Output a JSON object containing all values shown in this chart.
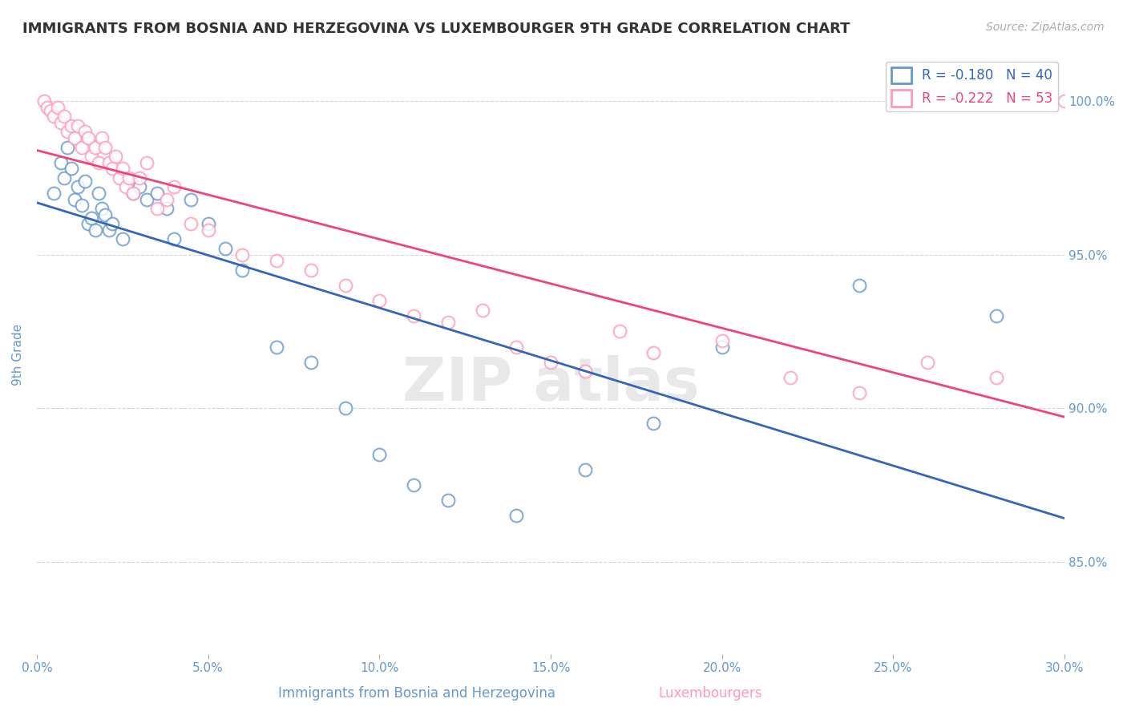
{
  "title": "IMMIGRANTS FROM BOSNIA AND HERZEGOVINA VS LUXEMBOURGER 9TH GRADE CORRELATION CHART",
  "source": "Source: ZipAtlas.com",
  "xlabel_left": "Immigrants from Bosnia and Herzegovina",
  "xlabel_right": "Luxembourgers",
  "ylabel": "9th Grade",
  "xlim": [
    0.0,
    0.3
  ],
  "ylim": [
    0.82,
    1.015
  ],
  "yticks": [
    0.85,
    0.9,
    0.95,
    1.0
  ],
  "xticks": [
    0.0,
    0.05,
    0.1,
    0.15,
    0.2,
    0.25,
    0.3
  ],
  "blue_R": -0.18,
  "blue_N": 40,
  "pink_R": -0.222,
  "pink_N": 53,
  "blue_edge_color": "#6699CC",
  "pink_edge_color": "#FF99BB",
  "blue_line_color": "#3366BB",
  "pink_line_color": "#EE4477",
  "blue_scatter_x": [
    0.005,
    0.007,
    0.008,
    0.009,
    0.01,
    0.011,
    0.012,
    0.013,
    0.014,
    0.015,
    0.016,
    0.017,
    0.018,
    0.019,
    0.02,
    0.021,
    0.022,
    0.025,
    0.028,
    0.03,
    0.032,
    0.035,
    0.038,
    0.04,
    0.045,
    0.05,
    0.055,
    0.06,
    0.07,
    0.08,
    0.09,
    0.1,
    0.11,
    0.12,
    0.14,
    0.16,
    0.18,
    0.2,
    0.24,
    0.28
  ],
  "blue_scatter_y": [
    0.97,
    0.98,
    0.975,
    0.985,
    0.978,
    0.968,
    0.972,
    0.966,
    0.974,
    0.96,
    0.962,
    0.958,
    0.97,
    0.965,
    0.963,
    0.958,
    0.96,
    0.955,
    0.97,
    0.972,
    0.968,
    0.97,
    0.965,
    0.955,
    0.968,
    0.96,
    0.952,
    0.945,
    0.92,
    0.915,
    0.9,
    0.885,
    0.875,
    0.87,
    0.865,
    0.88,
    0.895,
    0.92,
    0.94,
    0.93
  ],
  "pink_scatter_x": [
    0.002,
    0.003,
    0.004,
    0.005,
    0.006,
    0.007,
    0.008,
    0.009,
    0.01,
    0.011,
    0.012,
    0.013,
    0.014,
    0.015,
    0.016,
    0.017,
    0.018,
    0.019,
    0.02,
    0.021,
    0.022,
    0.023,
    0.024,
    0.025,
    0.026,
    0.027,
    0.028,
    0.03,
    0.032,
    0.035,
    0.038,
    0.04,
    0.045,
    0.05,
    0.06,
    0.07,
    0.08,
    0.09,
    0.1,
    0.11,
    0.12,
    0.13,
    0.14,
    0.15,
    0.16,
    0.17,
    0.18,
    0.2,
    0.22,
    0.24,
    0.26,
    0.28,
    0.3
  ],
  "pink_scatter_y": [
    1.0,
    0.998,
    0.997,
    0.995,
    0.998,
    0.993,
    0.995,
    0.99,
    0.992,
    0.988,
    0.992,
    0.985,
    0.99,
    0.988,
    0.982,
    0.985,
    0.98,
    0.988,
    0.985,
    0.98,
    0.978,
    0.982,
    0.975,
    0.978,
    0.972,
    0.975,
    0.97,
    0.975,
    0.98,
    0.965,
    0.968,
    0.972,
    0.96,
    0.958,
    0.95,
    0.948,
    0.945,
    0.94,
    0.935,
    0.93,
    0.928,
    0.932,
    0.92,
    0.915,
    0.912,
    0.925,
    0.918,
    0.922,
    0.91,
    0.905,
    0.915,
    0.91,
    1.0
  ],
  "background_color": "#FFFFFF",
  "grid_color": "#CCCCCC",
  "title_color": "#333333",
  "tick_label_color": "#6699CC"
}
